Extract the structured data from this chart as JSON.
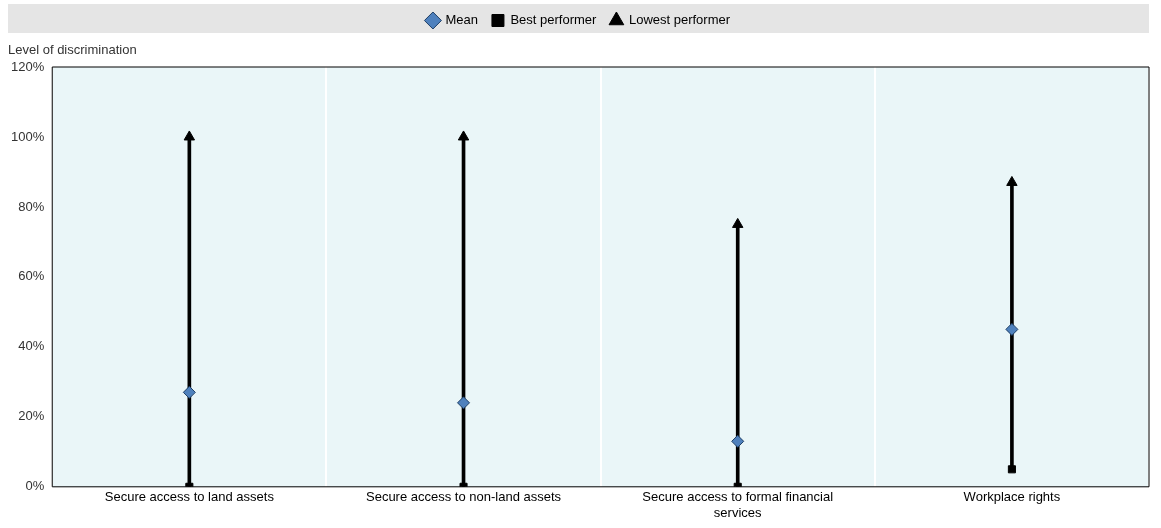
{
  "chart_data": {
    "type": "scatter",
    "ylabel": "Level of discrimination",
    "categories": [
      "Secure access to land assets",
      "Secure access to non-land assets",
      "Secure access to formal financial services",
      "Workplace rights"
    ],
    "series": [
      {
        "type": "bar",
        "color": "#000000",
        "base": [
          0,
          0,
          0,
          5
        ],
        "values": [
          100,
          100,
          75,
          82
        ]
      },
      {
        "name": "Mean",
        "color": "#4f81bd",
        "marker": "diamond",
        "values": [
          27,
          24,
          13,
          45
        ]
      },
      {
        "name": "Best performer",
        "color": "#000000",
        "marker": "square",
        "values": [
          0,
          0,
          0,
          5
        ]
      },
      {
        "name": "Lowest performer",
        "color": "#000000",
        "marker": "triangle",
        "values": [
          100,
          100,
          75,
          87
        ]
      }
    ],
    "ylim": [
      0,
      120
    ],
    "yticks": [
      {
        "value": 0,
        "label": "0%"
      },
      {
        "value": 20,
        "label": "20%"
      },
      {
        "value": 40,
        "label": "40%"
      },
      {
        "value": 60,
        "label": "60%"
      },
      {
        "value": 80,
        "label": "80%"
      },
      {
        "value": 100,
        "label": "100%"
      },
      {
        "value": 120,
        "label": "120%"
      }
    ],
    "grid": "x",
    "legend": "top"
  }
}
